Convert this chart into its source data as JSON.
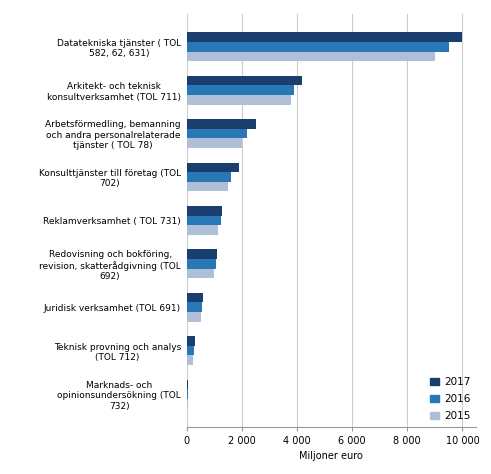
{
  "categories": [
    "Marknads- och\nopinionsundersökning (TOL\n732)",
    "Teknisk provning och analys\n(TOL 712)",
    "Juridisk verksamhet (TOL 691)",
    "Redovisning och bokföring,\nrevision, skatterådgivning (TOL\n692)",
    "Reklamverksamhet ( TOL 731)",
    "Konsulttjänster till företag (TOL\n702)",
    "Arbetsförmedling, bemanning\noch andra personalrelaterade\ntjänster ( TOL 78)",
    "Arkitekt- och teknisk\nkonsultverksamhet (TOL 711)",
    "Datatekniska tjänster ( TOL\n582, 62, 631)"
  ],
  "values_2017": [
    50,
    300,
    600,
    1100,
    1300,
    1900,
    2500,
    4200,
    10000
  ],
  "values_2016": [
    50,
    280,
    560,
    1050,
    1250,
    1600,
    2200,
    3900,
    9500
  ],
  "values_2015": [
    50,
    250,
    520,
    1000,
    1150,
    1500,
    2000,
    3800,
    9000
  ],
  "color_2017": "#1a3f6f",
  "color_2016": "#2878b5",
  "color_2015": "#b0bfd8",
  "xlabel": "Miljoner euro",
  "xlim": [
    0,
    10500
  ],
  "xticks": [
    0,
    2000,
    4000,
    6000,
    8000,
    10000
  ],
  "xtick_labels": [
    "0",
    "2 000",
    "4 000",
    "6 000",
    "8 000",
    "10 000"
  ],
  "bar_height": 0.22,
  "background_color": "#ffffff",
  "grid_color": "#cccccc",
  "label_fontsize": 6.5,
  "tick_fontsize": 7,
  "legend_fontsize": 7.5
}
